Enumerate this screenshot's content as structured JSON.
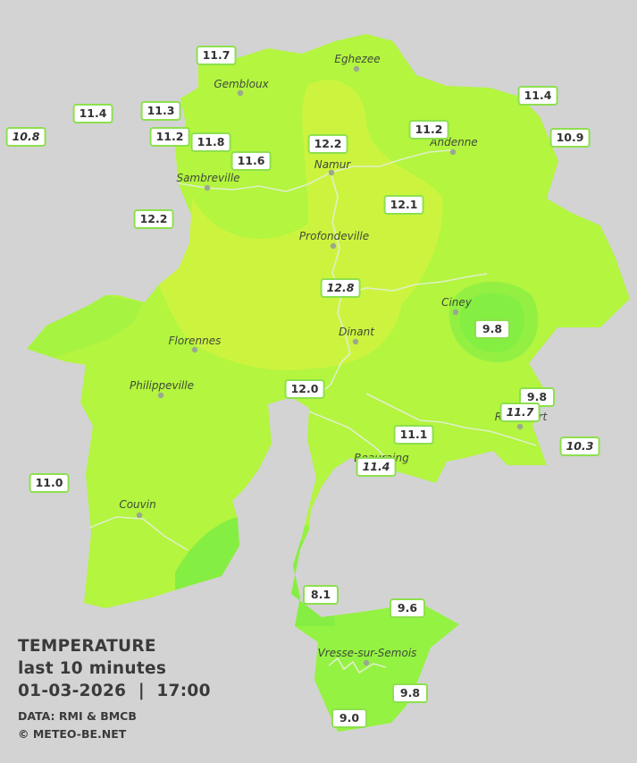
{
  "legend": {
    "title": "TEMPERATURE",
    "period": "last 10 minutes",
    "datetime": "01-03-2026  |  17:00",
    "source": "DATA: RMI & BMCB",
    "copyright": "© METEO-BE.NET"
  },
  "colors": {
    "background": "#d3d3d3",
    "zone_warm": "#ccf43e",
    "zone_mid": "#b3f53f",
    "zone_cool": "#99f242",
    "zone_cold": "#85ee42",
    "station_border": "#8de04e",
    "river": "#dff0c8"
  },
  "cities": [
    {
      "name": "Eghezee"
    },
    {
      "name": "Gembloux"
    },
    {
      "name": "Andenne"
    },
    {
      "name": "Namur"
    },
    {
      "name": "Sambreville"
    },
    {
      "name": "Profondeville"
    },
    {
      "name": "Ciney"
    },
    {
      "name": "Dinant"
    },
    {
      "name": "Florennes"
    },
    {
      "name": "Philippeville"
    },
    {
      "name": "Rochefort"
    },
    {
      "name": "Beauraing"
    },
    {
      "name": "Couvin"
    },
    {
      "name": "Vresse-sur-Semois"
    }
  ],
  "stations": [
    {
      "value": "11.7",
      "italic": false
    },
    {
      "value": "11.4",
      "italic": false
    },
    {
      "value": "11.4",
      "italic": false
    },
    {
      "value": "11.3",
      "italic": false
    },
    {
      "value": "10.8",
      "italic": true
    },
    {
      "value": "11.2",
      "italic": false
    },
    {
      "value": "11.8",
      "italic": false
    },
    {
      "value": "11.6",
      "italic": false
    },
    {
      "value": "12.2",
      "italic": false
    },
    {
      "value": "11.2",
      "italic": false
    },
    {
      "value": "10.9",
      "italic": false
    },
    {
      "value": "12.2",
      "italic": false
    },
    {
      "value": "12.1",
      "italic": false
    },
    {
      "value": "12.8",
      "italic": true
    },
    {
      "value": "9.8",
      "italic": false
    },
    {
      "value": "12.0",
      "italic": false
    },
    {
      "value": "9.8",
      "italic": false
    },
    {
      "value": "11.7",
      "italic": true
    },
    {
      "value": "11.1",
      "italic": false
    },
    {
      "value": "10.3",
      "italic": true
    },
    {
      "value": "11.4",
      "italic": true
    },
    {
      "value": "11.0",
      "italic": false
    },
    {
      "value": "8.1",
      "italic": false
    },
    {
      "value": "9.6",
      "italic": false
    },
    {
      "value": "9.8",
      "italic": false
    },
    {
      "value": "9.0",
      "italic": false
    }
  ]
}
